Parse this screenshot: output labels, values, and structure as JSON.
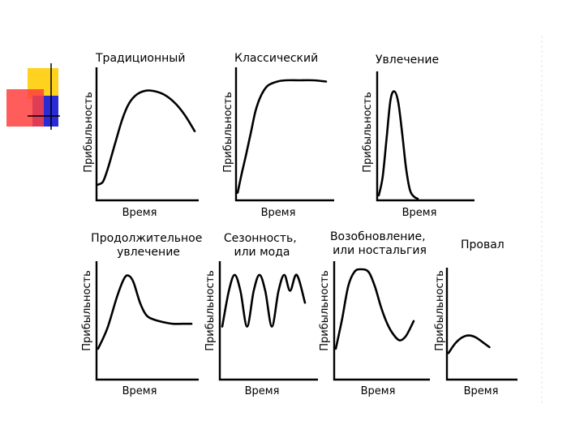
{
  "decor": {
    "square_colors": [
      "#ffd21f",
      "#2b2bd6",
      "#ff3f3f"
    ]
  },
  "chart_data": [
    {
      "type": "line",
      "title": "Традиционный",
      "xlabel": "Время",
      "ylabel": "Прибыльность",
      "x": [
        0,
        0.05,
        0.1,
        0.18,
        0.25,
        0.32,
        0.4,
        0.5,
        0.6,
        0.7,
        0.8,
        0.9,
        1.0
      ],
      "series": [
        {
          "values": [
            0.02,
            0.05,
            0.18,
            0.45,
            0.68,
            0.84,
            0.93,
            0.97,
            0.96,
            0.92,
            0.84,
            0.72,
            0.56
          ]
        }
      ],
      "ylim": [
        0,
        1
      ],
      "grid": false
    },
    {
      "type": "line",
      "title": "Классический",
      "xlabel": "Время",
      "ylabel": "Прибыльность",
      "x": [
        0,
        0.05,
        0.1,
        0.15,
        0.2,
        0.25,
        0.3,
        0.35,
        0.45,
        0.55,
        0.7,
        0.85,
        1.0
      ],
      "series": [
        {
          "values": [
            0.05,
            0.22,
            0.38,
            0.55,
            0.72,
            0.83,
            0.9,
            0.94,
            0.97,
            0.98,
            0.98,
            0.98,
            0.97
          ]
        }
      ],
      "ylim": [
        0,
        1
      ],
      "grid": false
    },
    {
      "type": "line",
      "title": "Увлечение",
      "xlabel": "Время",
      "ylabel": "Прибыльность",
      "x": [
        0,
        0.1,
        0.2,
        0.3,
        0.4,
        0.5,
        0.6,
        0.7,
        0.8,
        0.9,
        1.0
      ],
      "series": [
        {
          "values": [
            0.03,
            0.2,
            0.55,
            0.9,
            0.98,
            0.88,
            0.6,
            0.28,
            0.08,
            0.02,
            0.0
          ]
        }
      ],
      "ylim": [
        0,
        1
      ],
      "grid": false
    },
    {
      "type": "line",
      "title": "Продолжительное увлечение",
      "xlabel": "Время",
      "ylabel": "Прибыльность",
      "x": [
        0,
        0.1,
        0.2,
        0.28,
        0.33,
        0.38,
        0.45,
        0.52,
        0.6,
        0.7,
        0.8,
        0.9,
        1.0
      ],
      "series": [
        {
          "values": [
            0.1,
            0.35,
            0.72,
            0.95,
            0.98,
            0.9,
            0.65,
            0.5,
            0.45,
            0.42,
            0.4,
            0.4,
            0.4
          ]
        }
      ],
      "ylim": [
        0,
        1
      ],
      "grid": false
    },
    {
      "type": "line",
      "title": "Сезонность, или мода",
      "xlabel": "Время",
      "ylabel": "Прибыльность",
      "x": [
        0,
        0.08,
        0.15,
        0.22,
        0.3,
        0.38,
        0.45,
        0.52,
        0.6,
        0.68,
        0.75,
        0.82,
        0.9,
        1.0
      ],
      "series": [
        {
          "values": [
            0.3,
            0.75,
            0.95,
            0.75,
            0.3,
            0.75,
            0.95,
            0.75,
            0.3,
            0.75,
            0.95,
            0.75,
            0.95,
            0.6
          ]
        }
      ],
      "ylim": [
        0,
        1
      ],
      "grid": false
    },
    {
      "type": "line",
      "title": "Возобновление, или ностальгия",
      "xlabel": "Время",
      "ylabel": "Прибыльность",
      "x": [
        0,
        0.08,
        0.16,
        0.24,
        0.32,
        0.42,
        0.5,
        0.58,
        0.66,
        0.74,
        0.82,
        0.9,
        1.0
      ],
      "series": [
        {
          "values": [
            0.05,
            0.4,
            0.8,
            0.97,
            1.0,
            0.97,
            0.8,
            0.55,
            0.35,
            0.22,
            0.15,
            0.2,
            0.38
          ]
        }
      ],
      "ylim": [
        0,
        1
      ],
      "grid": false
    },
    {
      "type": "line",
      "title": "Провал",
      "xlabel": "Время",
      "ylabel": "Прибыльность",
      "x": [
        0,
        0.1,
        0.2,
        0.3,
        0.4,
        0.5,
        0.6
      ],
      "series": [
        {
          "values": [
            0.1,
            0.35,
            0.5,
            0.55,
            0.5,
            0.38,
            0.25
          ]
        }
      ],
      "xlim": [
        0,
        1
      ],
      "ylim": [
        0,
        1
      ],
      "grid": false
    }
  ]
}
